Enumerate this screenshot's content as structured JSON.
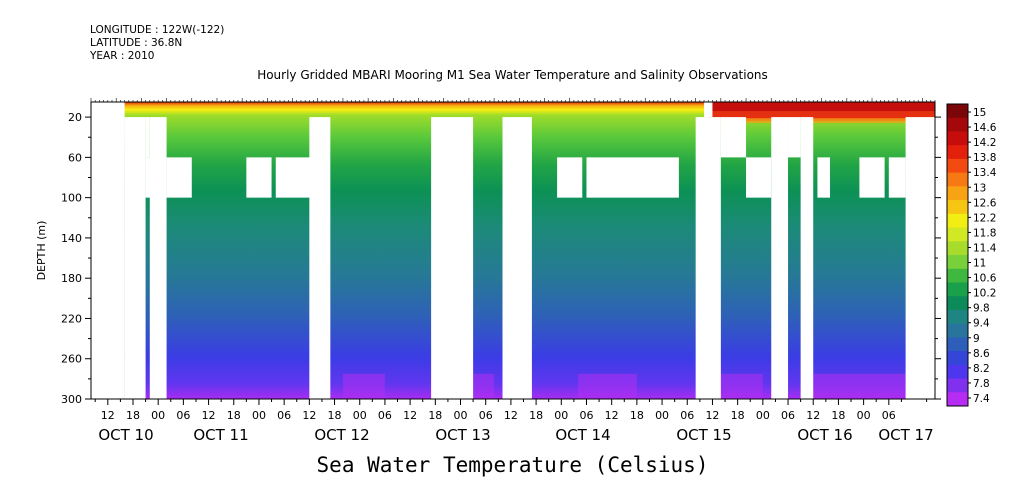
{
  "header": {
    "longitude": "LONGITUDE : 122W(-122)",
    "latitude": "LATITUDE : 36.8N",
    "year": "YEAR : 2010"
  },
  "footer": {
    "title": "Sea Water Temperature (Celsius)"
  },
  "chart_data": {
    "type": "heatmap",
    "title": "Hourly Gridded MBARI Mooring M1 Sea Water Temperature and Salinity Observations",
    "xlabel": "",
    "ylabel": "DEPTH (m)",
    "y_ticks": [
      "20",
      "60",
      "100",
      "140",
      "180",
      "220",
      "260",
      "300"
    ],
    "y_range": [
      5,
      300
    ],
    "x_tick_hours": [
      "12",
      "18",
      "00",
      "06",
      "12",
      "18",
      "00",
      "06",
      "12",
      "18",
      "00",
      "06",
      "12",
      "18",
      "00",
      "06",
      "12",
      "18",
      "00",
      "06",
      "12",
      "18",
      "00",
      "06",
      "12",
      "18",
      "00",
      "06",
      "12",
      "18",
      "00",
      "06"
    ],
    "x_date_labels": [
      "OCT 10",
      "OCT 11",
      "OCT 12",
      "OCT 13",
      "OCT 14",
      "OCT 15",
      "OCT 16",
      "OCT 17"
    ],
    "colorbar_labels": [
      "15",
      "14.6",
      "14.2",
      "13.8",
      "13.4",
      "13",
      "12.6",
      "12.2",
      "11.8",
      "11.4",
      "11",
      "10.6",
      "10.2",
      "9.8",
      "9.4",
      "9",
      "8.6",
      "8.2",
      "7.8",
      "7.4"
    ],
    "colorbar_range": [
      7.4,
      15.2
    ],
    "time_range_hours": [
      0,
      201
    ],
    "missing_data": [
      {
        "t": [
          0,
          8
        ],
        "d": [
          5,
          300
        ]
      },
      {
        "t": [
          8,
          13
        ],
        "d": [
          20,
          300
        ]
      },
      {
        "t": [
          13,
          14
        ],
        "d": [
          20,
          60
        ]
      },
      {
        "t": [
          13,
          17
        ],
        "d": [
          60,
          100
        ]
      },
      {
        "t": [
          14,
          15
        ],
        "d": [
          20,
          300
        ]
      },
      {
        "t": [
          15,
          18
        ],
        "d": [
          20,
          300
        ]
      },
      {
        "t": [
          18,
          24
        ],
        "d": [
          60,
          100
        ]
      },
      {
        "t": [
          37,
          43
        ],
        "d": [
          60,
          100
        ]
      },
      {
        "t": [
          44,
          54
        ],
        "d": [
          60,
          100
        ]
      },
      {
        "t": [
          52,
          57
        ],
        "d": [
          20,
          300
        ]
      },
      {
        "t": [
          81,
          91
        ],
        "d": [
          20,
          300
        ]
      },
      {
        "t": [
          98,
          105
        ],
        "d": [
          20,
          300
        ]
      },
      {
        "t": [
          111,
          117
        ],
        "d": [
          60,
          100
        ]
      },
      {
        "t": [
          118,
          140
        ],
        "d": [
          60,
          100
        ]
      },
      {
        "t": [
          144,
          150
        ],
        "d": [
          20,
          300
        ]
      },
      {
        "t": [
          146,
          148
        ],
        "d": [
          5,
          20
        ]
      },
      {
        "t": [
          150,
          156
        ],
        "d": [
          20,
          60
        ]
      },
      {
        "t": [
          156,
          162
        ],
        "d": [
          60,
          100
        ]
      },
      {
        "t": [
          162,
          166
        ],
        "d": [
          20,
          300
        ]
      },
      {
        "t": [
          166,
          169
        ],
        "d": [
          20,
          60
        ]
      },
      {
        "t": [
          169,
          172
        ],
        "d": [
          20,
          300
        ]
      },
      {
        "t": [
          173,
          176
        ],
        "d": [
          60,
          100
        ]
      },
      {
        "t": [
          183,
          189
        ],
        "d": [
          60,
          100
        ]
      },
      {
        "t": [
          190,
          194
        ],
        "d": [
          60,
          100
        ]
      },
      {
        "t": [
          194,
          201
        ],
        "d": [
          20,
          300
        ]
      }
    ]
  }
}
